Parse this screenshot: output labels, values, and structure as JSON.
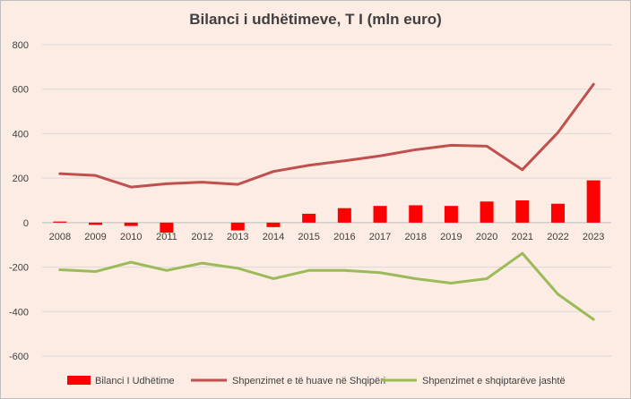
{
  "chart_data": {
    "type": "bar+line",
    "title": "Bilanci i udhëtimeve, T I (mln euro)",
    "xlabel": "",
    "ylabel": "",
    "ylim": [
      -600,
      800
    ],
    "yticks": [
      800,
      600,
      400,
      200,
      0,
      -200,
      -400,
      -600
    ],
    "grid": true,
    "legend_position": "bottom",
    "categories": [
      "2008",
      "2009",
      "2010",
      "2011",
      "2012",
      "2013",
      "2014",
      "2015",
      "2016",
      "2017",
      "2018",
      "2019",
      "2020",
      "2021",
      "2022",
      "2023"
    ],
    "series": [
      {
        "name": "Bilanci I Udhëtime",
        "kind": "bar",
        "color": "#ff0000",
        "values": [
          5,
          -10,
          -15,
          -45,
          0,
          -35,
          -20,
          40,
          65,
          75,
          78,
          75,
          95,
          100,
          85,
          190
        ]
      },
      {
        "name": "Shpenzimet e të huave në Shqipëri",
        "kind": "line",
        "color": "#c0504d",
        "values": [
          220,
          212,
          160,
          175,
          182,
          172,
          230,
          258,
          278,
          300,
          328,
          348,
          344,
          238,
          405,
          622
        ]
      },
      {
        "name": "Shpenzimet e shqiptarëve jashtë",
        "kind": "line",
        "color": "#9bbb59",
        "values": [
          -212,
          -220,
          -178,
          -215,
          -182,
          -205,
          -252,
          -215,
          -215,
          -225,
          -252,
          -272,
          -252,
          -138,
          -322,
          -435
        ]
      }
    ]
  }
}
